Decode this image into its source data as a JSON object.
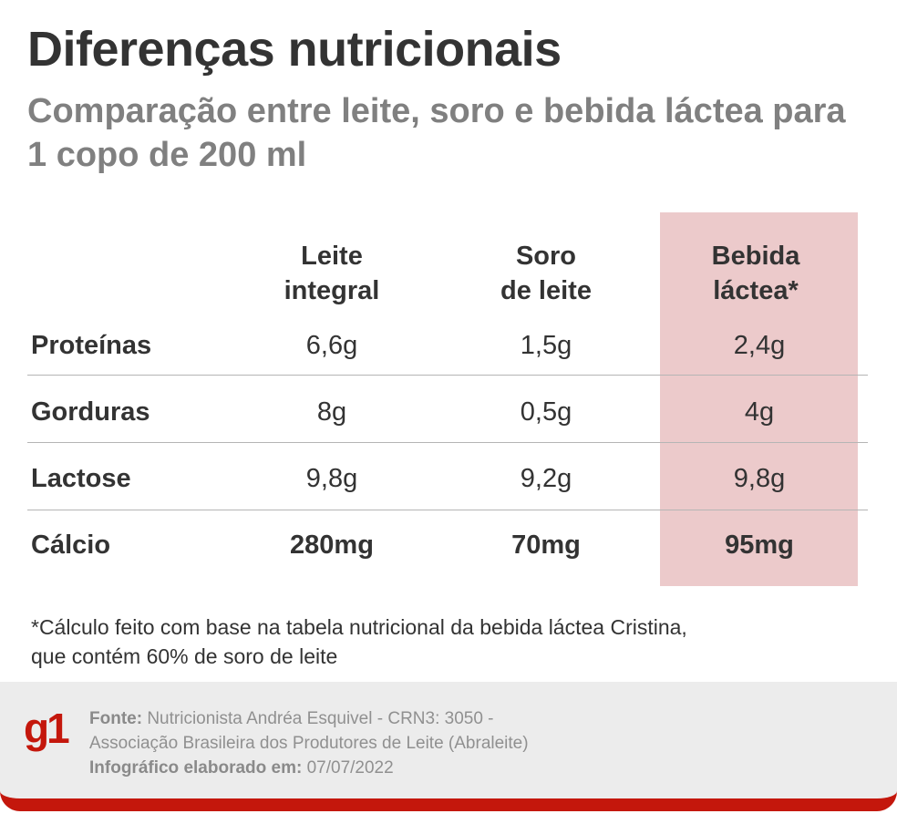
{
  "title": "Diferenças nutricionais",
  "subtitle": "Comparação entre leite, soro e bebida láctea para 1 copo de 200 ml",
  "table": {
    "columns": [
      {
        "line1": "Leite",
        "line2": "integral"
      },
      {
        "line1": "Soro",
        "line2": "de leite"
      },
      {
        "line1": "Bebida",
        "line2": "láctea*"
      }
    ],
    "rows": [
      {
        "label": "Proteínas",
        "values": [
          "6,6g",
          "1,5g",
          "2,4g"
        ]
      },
      {
        "label": "Gorduras",
        "values": [
          "8g",
          "0,5g",
          "4g"
        ]
      },
      {
        "label": "Lactose",
        "values": [
          "9,8g",
          "9,2g",
          "9,8g"
        ]
      },
      {
        "label": "Cálcio",
        "values": [
          "280mg",
          "70mg",
          "95mg"
        ]
      }
    ],
    "highlight_color": "#eccacb"
  },
  "footnote": {
    "line1": "*Cálculo feito com base na tabela nutricional da bebida láctea Cristina,",
    "line2": "que contém 60% de soro de leite"
  },
  "footer": {
    "logo": "g1",
    "source_label": "Fonte:",
    "source_line1": "Nutricionista Andréa Esquivel - CRN3: 3050 -",
    "source_line2": "Associação Brasileira dos Produtores de Leite (Abraleite)",
    "date_label": "Infográfico elaborado em:",
    "date": "07/07/2022",
    "brand_color": "#c4170c"
  }
}
